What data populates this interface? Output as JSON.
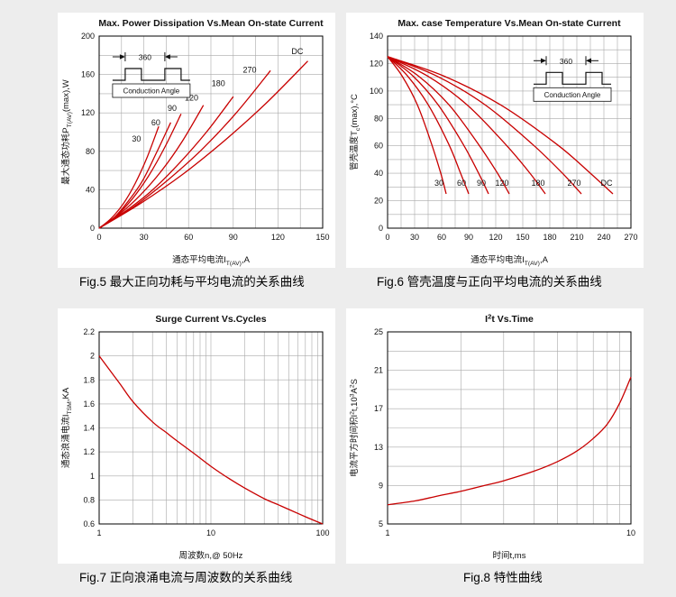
{
  "page": {
    "background": "#ededed",
    "panel_background": "#ffffff",
    "accent": "#c80000",
    "grid_color": "#a9a9a9"
  },
  "figure_captions": [
    "Fig.5  最大正向功耗与平均电流的关系曲线",
    "Fig.6  管壳温度与正向平均电流的关系曲线",
    "Fig.7  正向浪涌电流与周波数的关系曲线",
    "Fig.8  特性曲线"
  ],
  "chart_data": [
    {
      "id": "fig5",
      "type": "line",
      "title": "Max. Power Dissipation Vs.Mean On-state Current",
      "xlabel": "通态平均电流I_{T(AV)},A",
      "ylabel": "最大通态功耗P_{T(AV)}(max),W",
      "x": {
        "scale": "linear",
        "min": 0,
        "max": 150,
        "ticks": [
          0,
          30,
          60,
          90,
          120,
          150
        ],
        "grid_step": 15
      },
      "y": {
        "scale": "linear",
        "min": 0,
        "max": 200,
        "ticks": [
          0,
          40,
          80,
          120,
          160,
          200
        ],
        "grid_step": 20
      },
      "inset": {
        "kind": "conduction-angle",
        "label": "360",
        "caption": "Conduction Angle",
        "fx": 0.06,
        "fy": 0.08
      },
      "series": [
        {
          "name": "30",
          "label_at": [
            25,
            90
          ],
          "points": [
            [
              0,
              0
            ],
            [
              8,
              10
            ],
            [
              16,
              25
            ],
            [
              24,
              46
            ],
            [
              32,
              73
            ],
            [
              40,
              106
            ]
          ]
        },
        {
          "name": "60",
          "label_at": [
            38,
            107
          ],
          "points": [
            [
              0,
              0
            ],
            [
              10,
              11
            ],
            [
              19,
              27
            ],
            [
              29,
              49
            ],
            [
              38,
              77
            ],
            [
              48,
              110
            ]
          ]
        },
        {
          "name": "90",
          "label_at": [
            49,
            122
          ],
          "points": [
            [
              0,
              0
            ],
            [
              11,
              12
            ],
            [
              22,
              30
            ],
            [
              33,
              54
            ],
            [
              44,
              84
            ],
            [
              55,
              119
            ]
          ]
        },
        {
          "name": "120",
          "label_at": [
            62,
            133
          ],
          "points": [
            [
              0,
              0
            ],
            [
              14,
              15
            ],
            [
              28,
              35
            ],
            [
              42,
              60
            ],
            [
              56,
              91
            ],
            [
              70,
              128
            ]
          ]
        },
        {
          "name": "180",
          "label_at": [
            80,
            148
          ],
          "points": [
            [
              0,
              0
            ],
            [
              18,
              18
            ],
            [
              36,
              40
            ],
            [
              54,
              68
            ],
            [
              72,
              100
            ],
            [
              90,
              137
            ]
          ]
        },
        {
          "name": "270",
          "label_at": [
            101,
            162
          ],
          "points": [
            [
              0,
              0
            ],
            [
              23,
              22
            ],
            [
              46,
              50
            ],
            [
              69,
              82
            ],
            [
              92,
              120
            ],
            [
              115,
              164
            ]
          ]
        },
        {
          "name": "DC",
          "label_at": [
            133,
            181
          ],
          "points": [
            [
              0,
              0
            ],
            [
              28,
              26
            ],
            [
              56,
              56
            ],
            [
              84,
              91
            ],
            [
              112,
              130
            ],
            [
              140,
              174
            ]
          ]
        }
      ]
    },
    {
      "id": "fig6",
      "type": "line",
      "title": "Max. case Temperature Vs.Mean On-state Current",
      "xlabel": "通态平均电流I_{T(AV)},A",
      "ylabel": "管壳温度T_{c}(max),°C",
      "x": {
        "scale": "linear",
        "min": 0,
        "max": 270,
        "ticks": [
          0,
          30,
          60,
          90,
          120,
          150,
          180,
          210,
          240,
          270
        ],
        "grid_step": 15
      },
      "y": {
        "scale": "linear",
        "min": 0,
        "max": 140,
        "ticks": [
          0,
          20,
          40,
          60,
          80,
          100,
          120,
          140
        ],
        "grid_step": 10
      },
      "inset": {
        "kind": "conduction-angle",
        "label": "360",
        "caption": "Conduction Angle",
        "fx": 0.6,
        "fy": 0.1
      },
      "series": [
        {
          "name": "30",
          "label_at": [
            57,
            31
          ],
          "points": [
            [
              0,
              125
            ],
            [
              16,
              111
            ],
            [
              33,
              90
            ],
            [
              49,
              61
            ],
            [
              59,
              40
            ],
            [
              65,
              25
            ]
          ]
        },
        {
          "name": "60",
          "label_at": [
            82,
            31
          ],
          "points": [
            [
              0,
              125
            ],
            [
              22,
              111
            ],
            [
              45,
              90
            ],
            [
              68,
              61
            ],
            [
              81,
              40
            ],
            [
              90,
              25
            ]
          ]
        },
        {
          "name": "90",
          "label_at": [
            104,
            31
          ],
          "points": [
            [
              0,
              125
            ],
            [
              28,
              111
            ],
            [
              56,
              90
            ],
            [
              84,
              61
            ],
            [
              101,
              40
            ],
            [
              112,
              25
            ]
          ]
        },
        {
          "name": "120",
          "label_at": [
            127,
            31
          ],
          "points": [
            [
              0,
              125
            ],
            [
              34,
              111
            ],
            [
              68,
              90
            ],
            [
              101,
              61
            ],
            [
              122,
              40
            ],
            [
              135,
              25
            ]
          ]
        },
        {
          "name": "180",
          "label_at": [
            167,
            31
          ],
          "points": [
            [
              0,
              125
            ],
            [
              44,
              111
            ],
            [
              88,
              90
            ],
            [
              131,
              61
            ],
            [
              158,
              40
            ],
            [
              175,
              25
            ]
          ]
        },
        {
          "name": "270",
          "label_at": [
            207,
            31
          ],
          "points": [
            [
              0,
              125
            ],
            [
              54,
              111
            ],
            [
              108,
              90
            ],
            [
              161,
              61
            ],
            [
              194,
              40
            ],
            [
              215,
              25
            ]
          ]
        },
        {
          "name": "DC",
          "label_at": [
            243,
            31
          ],
          "points": [
            [
              0,
              125
            ],
            [
              62,
              111
            ],
            [
              125,
              90
            ],
            [
              188,
              61
            ],
            [
              225,
              40
            ],
            [
              250,
              25
            ]
          ]
        }
      ]
    },
    {
      "id": "fig7",
      "type": "line",
      "title": "Surge Current Vs.Cycles",
      "xlabel": "周波数n,@ 50Hz",
      "ylabel": "通态浪涌电流I_{TSM},KA",
      "x": {
        "scale": "log",
        "min": 1,
        "max": 100,
        "ticks": [
          1,
          10,
          100
        ]
      },
      "y": {
        "scale": "linear",
        "min": 0.6,
        "max": 2.2,
        "ticks": [
          0.6,
          0.8,
          1,
          1.2,
          1.4,
          1.6,
          1.8,
          2,
          2.2
        ],
        "grid_step": 0.2
      },
      "series": [
        {
          "name": "surge-current",
          "points": [
            [
              1,
              2
            ],
            [
              1.5,
              1.78
            ],
            [
              2,
              1.62
            ],
            [
              3,
              1.45
            ],
            [
              4,
              1.36
            ],
            [
              5,
              1.29
            ],
            [
              7,
              1.19
            ],
            [
              10,
              1.08
            ],
            [
              15,
              0.97
            ],
            [
              20,
              0.9
            ],
            [
              30,
              0.81
            ],
            [
              40,
              0.76
            ],
            [
              50,
              0.72
            ],
            [
              70,
              0.66
            ],
            [
              100,
              0.6
            ]
          ]
        }
      ]
    },
    {
      "id": "fig8",
      "type": "line",
      "title": "I^{2}t  Vs.Time",
      "xlabel": "时间t,ms",
      "ylabel": "电流平方时间积I^{2}t,10^{3}A^{2}S",
      "x": {
        "scale": "log",
        "min": 1,
        "max": 10,
        "ticks": [
          1,
          10
        ]
      },
      "y": {
        "scale": "linear",
        "min": 5,
        "max": 25,
        "ticks": [
          5,
          9,
          13,
          17,
          21,
          25
        ],
        "grid_step": 2
      },
      "series": [
        {
          "name": "i2t",
          "points": [
            [
              1,
              7
            ],
            [
              1.3,
              7.4
            ],
            [
              1.6,
              7.9
            ],
            [
              2,
              8.4
            ],
            [
              2.5,
              9
            ],
            [
              3,
              9.5
            ],
            [
              4,
              10.5
            ],
            [
              5,
              11.5
            ],
            [
              6,
              12.6
            ],
            [
              7,
              13.9
            ],
            [
              8,
              15.4
            ],
            [
              9,
              17.6
            ],
            [
              10,
              20.3
            ]
          ]
        }
      ]
    }
  ]
}
